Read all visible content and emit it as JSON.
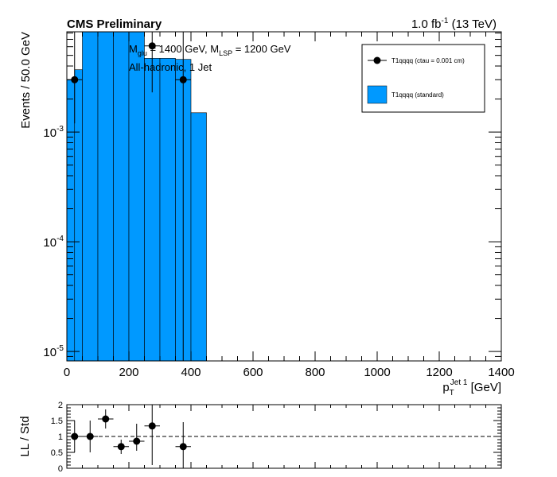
{
  "chart_data": [
    {
      "type": "bar",
      "header_left": "CMS Preliminary",
      "lumi": {
        "value": "1.0 fb",
        "sup": "-1",
        "energy": " (13 TeV)"
      },
      "annotations": {
        "mass_line": {
          "p1": "M",
          "p1_sub": "glu",
          "p2": " = 1400 GeV, M",
          "p2_sub": "LSP",
          "p3": " = 1200 GeV"
        },
        "selection": "All-hadronic, 1 Jet"
      },
      "ylabel": "Events / 50.0 GeV",
      "xlabel": {
        "main": "p",
        "sub": "T",
        "sup": "Jet 1",
        "unit": " [GeV]"
      },
      "xlim": [
        0,
        1400
      ],
      "ylim": [
        8.2e-06,
        0.0082
      ],
      "yscale": "log",
      "x_ticks": [
        "0",
        "200",
        "400",
        "600",
        "800",
        "1000",
        "1200",
        "1400"
      ],
      "y_ticks": [
        {
          "base": "10",
          "exp": "-5",
          "value": 1e-05
        },
        {
          "base": "10",
          "exp": "-4",
          "value": 0.0001
        },
        {
          "base": "10",
          "exp": "-3",
          "value": 0.001
        }
      ],
      "legend_position": "top-right",
      "series": [
        {
          "name": "T1qqqq (standard)",
          "style": "filled histogram",
          "color": "#0099ff",
          "bins": [
            {
              "x": [
                0,
                25
              ],
              "y": 0.003
            },
            {
              "x": [
                25,
                50
              ],
              "y": 0.0037
            },
            {
              "x": [
                50,
                100
              ],
              "y": 0.0082
            },
            {
              "x": [
                100,
                150
              ],
              "y": 0.0082
            },
            {
              "x": [
                150,
                200
              ],
              "y": 0.0082
            },
            {
              "x": [
                200,
                250
              ],
              "y": 0.0082
            },
            {
              "x": [
                250,
                300
              ],
              "y": 0.0047
            },
            {
              "x": [
                300,
                350
              ],
              "y": 0.0047
            },
            {
              "x": [
                350,
                400
              ],
              "y": 0.0046
            },
            {
              "x": [
                400,
                450
              ],
              "y": 0.0015
            }
          ]
        },
        {
          "name": "T1qqqq (ctau = 0.001 cm)",
          "style": "markers with error bars",
          "color": "#000000",
          "points": [
            {
              "x": 25,
              "y": 0.003,
              "ylo": 0.0012,
              "yhi": 0.0082
            },
            {
              "x": 275,
              "y": 0.0061,
              "ylo": 0.0023,
              "yhi": 0.0082
            },
            {
              "x": 375,
              "y": 0.003,
              "ylo": 8.2e-06,
              "yhi": 0.0082
            }
          ]
        }
      ]
    },
    {
      "type": "scatter",
      "ylabel": "LL / Std",
      "xlim": [
        0,
        1400
      ],
      "ylim": [
        0,
        2
      ],
      "y_ticks": [
        "0",
        "0.5",
        "1",
        "1.5",
        "2"
      ],
      "reference_line": 1,
      "series": [
        {
          "points": [
            {
              "x": 25,
              "y": 1.0,
              "ylo": 0.5,
              "yhi": 1.5
            },
            {
              "x": 75,
              "y": 1.0,
              "ylo": 0.5,
              "yhi": 1.5
            },
            {
              "x": 125,
              "y": 1.55,
              "ylo": 1.25,
              "yhi": 1.85
            },
            {
              "x": 175,
              "y": 0.68,
              "ylo": 0.45,
              "yhi": 0.9
            },
            {
              "x": 225,
              "y": 0.85,
              "ylo": 0.55,
              "yhi": 1.4
            },
            {
              "x": 275,
              "y": 1.33,
              "ylo": 0.1,
              "yhi": 2.0
            },
            {
              "x": 375,
              "y": 0.68,
              "ylo": 0.0,
              "yhi": 1.45
            }
          ]
        }
      ]
    }
  ]
}
